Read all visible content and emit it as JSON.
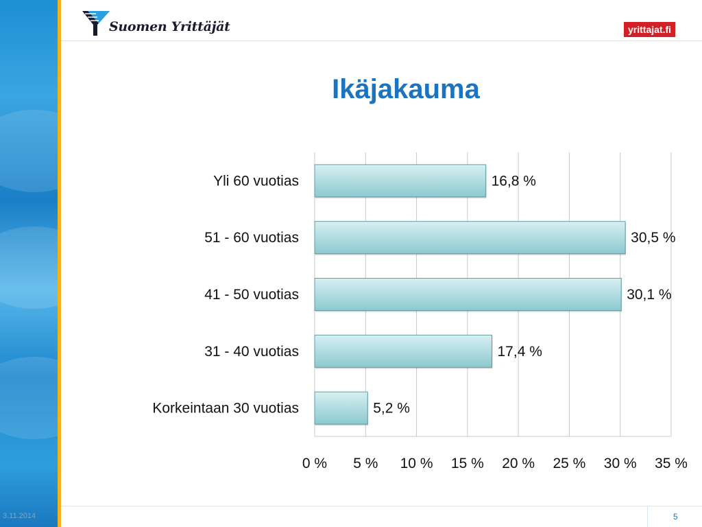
{
  "header": {
    "logo_text": "Suomen Yrittäjät",
    "brand_badge": "yrittajat.fi"
  },
  "slide": {
    "title": "Ikäjakauma"
  },
  "footer": {
    "date": "3.11.2014",
    "page_number": "5"
  },
  "colors": {
    "title": "#1b74c0",
    "bar_fill_top": "#d7f0f2",
    "bar_fill_bottom": "#8cc9cf",
    "bar_stroke": "#5f9ea6",
    "grid": "#c8c8c8",
    "badge": "#d32027",
    "accent_line": "#f2b21c"
  },
  "chart_data": {
    "type": "bar",
    "orientation": "horizontal",
    "categories": [
      "Yli 60 vuotias",
      "51 - 60 vuotias",
      "41 - 50 vuotias",
      "31 - 40 vuotias",
      "Korkeintaan 30 vuotias"
    ],
    "values": [
      16.8,
      30.5,
      30.1,
      17.4,
      5.2
    ],
    "value_labels": [
      "16,8 %",
      "30,5 %",
      "30,1 %",
      "17,4 %",
      "5,2 %"
    ],
    "xlim": [
      0,
      35
    ],
    "xticks": [
      0,
      5,
      10,
      15,
      20,
      25,
      30,
      35
    ],
    "xtick_labels": [
      "0 %",
      "5 %",
      "10 %",
      "15 %",
      "20 %",
      "25 %",
      "30 %",
      "35 %"
    ],
    "grid": true,
    "legend": "none",
    "title": "",
    "xlabel": "",
    "ylabel": ""
  }
}
